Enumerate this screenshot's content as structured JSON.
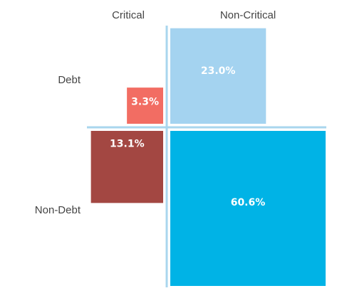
{
  "chart_data": {
    "type": "quadrant-area",
    "column_labels": [
      "Critical",
      "Non-Critical"
    ],
    "row_labels": [
      "Debt",
      "Non-Debt"
    ],
    "cells": [
      {
        "row": "Debt",
        "column": "Critical",
        "value": 3.3,
        "label": "3.3%",
        "color": "#f26d63"
      },
      {
        "row": "Debt",
        "column": "Non-Critical",
        "value": 23.0,
        "label": "23.0%",
        "color": "#a4d3f0"
      },
      {
        "row": "Non-Debt",
        "column": "Critical",
        "value": 13.1,
        "label": "13.1%",
        "color": "#a34742"
      },
      {
        "row": "Non-Debt",
        "column": "Non-Critical",
        "value": 60.6,
        "label": "60.6%",
        "color": "#00b3e6"
      }
    ],
    "divider_color": "#a9d6ee"
  }
}
